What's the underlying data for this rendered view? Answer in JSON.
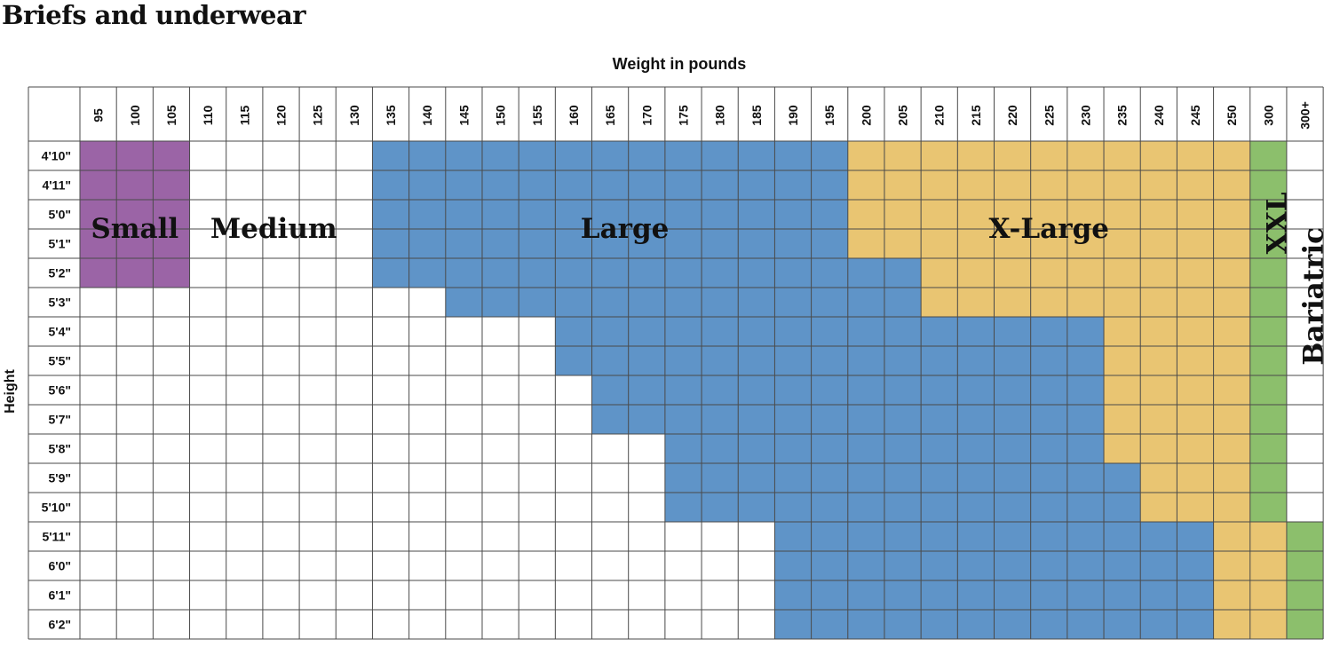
{
  "title": "Briefs and underwear",
  "chart_data": {
    "type": "heatmap",
    "xlabel": "Weight in pounds",
    "ylabel": "Height",
    "x_categories": [
      "95",
      "100",
      "105",
      "110",
      "115",
      "120",
      "125",
      "130",
      "135",
      "140",
      "145",
      "150",
      "155",
      "160",
      "165",
      "170",
      "175",
      "180",
      "185",
      "190",
      "195",
      "200",
      "205",
      "210",
      "215",
      "220",
      "225",
      "230",
      "235",
      "240",
      "245",
      "250",
      "300",
      "300+"
    ],
    "y_categories": [
      "4'10\"",
      "4'11\"",
      "5'0\"",
      "5'1\"",
      "5'2\"",
      "5'3\"",
      "5'4\"",
      "5'5\"",
      "5'6\"",
      "5'7\"",
      "5'8\"",
      "5'9\"",
      "5'10\"",
      "5'11\"",
      "6'0\"",
      "6'1\"",
      "6'2\""
    ],
    "sizes": [
      {
        "name": "Small",
        "color": "#9b64a6"
      },
      {
        "name": "Medium",
        "color": "#ffffff"
      },
      {
        "name": "Large",
        "color": "#5f94c8"
      },
      {
        "name": "X-Large",
        "color": "#e9c572"
      },
      {
        "name": "XXL",
        "color": "#8cbf6c"
      },
      {
        "name": "Bariatric",
        "color": "#ffffff"
      }
    ],
    "grid": [
      "SSSMMMMMLLLLLLLLLLLLLXXXXXXXXXXXGB",
      "SSSMMMMMLLLLLLLLLLLLLXXXXXXXXXXXGB",
      "SSSMMMMMLLLLLLLLLLLLLXXXXXXXXXXXGB",
      "SSSMMMMMLLLLLLLLLLLLLXXXXXXXXXXXGB",
      "SSSMMMMMLLLLLLLLLLLLLLLXXXXXXXXXGB",
      "MMMMMMMMMMLLLLLLLLLLLLLXXXXXXXXXGB",
      "MMMMMMMMMMMMMLLLLLLLLLLLLLLLXXXXGB",
      "MMMMMMMMMMMMMLLLLLLLLLLLLLLLXXXXGB",
      "MMMMMMMMMMMMMMLLLLLLLLLLLLLLXXXXGB",
      "MMMMMMMMMMMMMMLLLLLLLLLLLLLLXXXXGB",
      "MMMMMMMMMMMMMMMMLLLLLLLLLLLLXXXXGB",
      "MMMMMMMMMMMMMMMMLLLLLLLLLLLLLXXXGB",
      "MMMMMMMMMMMMMMMMLLLLLLLLLLLLLXXXGB",
      "MMMMMMMMMMMMMMMMMMMLLLLLLLLLLLLXXGB",
      "MMMMMMMMMMMMMMMMMMMLLLLLLLLLLLLXXGB",
      "MMMMMMMMMMMMMMMMMMMLLLLLLLLLLLLXXGB",
      "MMMMMMMMMMMMMMMMMMMLLLLLLLLLLLLXXGB"
    ],
    "grid_legend": {
      "S": "Small",
      "M": "Medium",
      "L": "Large",
      "X": "X-Large",
      "G": "XXL",
      "B": "Bariatric"
    },
    "legend": "in-grid labels",
    "grid_lines": true
  }
}
